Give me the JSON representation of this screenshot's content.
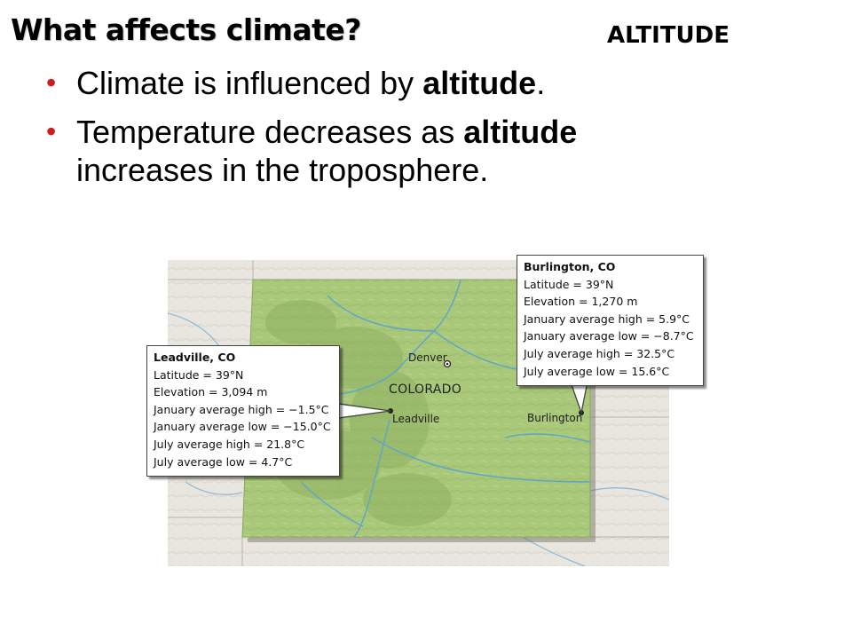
{
  "slide": {
    "title": "What affects climate?",
    "topic": "ALTITUDE",
    "bullets": [
      {
        "pre": "Climate is influenced by ",
        "bold": "altitude",
        "post": "."
      },
      {
        "pre": "Temperature decreases as ",
        "bold": "altitude",
        "post": " increases in the troposphere."
      }
    ]
  },
  "map": {
    "state_label": "COLORADO",
    "cities": {
      "denver": "Denver",
      "leadville": "Leadville",
      "burlington": "Burlington"
    },
    "colors": {
      "state_fill": "#a9c87a",
      "surrounding": "#e9e6df",
      "rivers": "#5fa6c9",
      "callout_border": "#444444"
    }
  },
  "callouts": {
    "leadville": {
      "title": "Leadville, CO",
      "lines": [
        "Latitude = 39°N",
        "Elevation = 3,094 m",
        "January average high = −1.5°C",
        "January average low = −15.0°C",
        "July average high = 21.8°C",
        "July average low = 4.7°C"
      ]
    },
    "burlington": {
      "title": "Burlington, CO",
      "lines": [
        "Latitude = 39°N",
        "Elevation = 1,270 m",
        "January average high = 5.9°C",
        "January average low = −8.7°C",
        "July average high = 32.5°C",
        "July average low = 15.6°C"
      ]
    }
  }
}
